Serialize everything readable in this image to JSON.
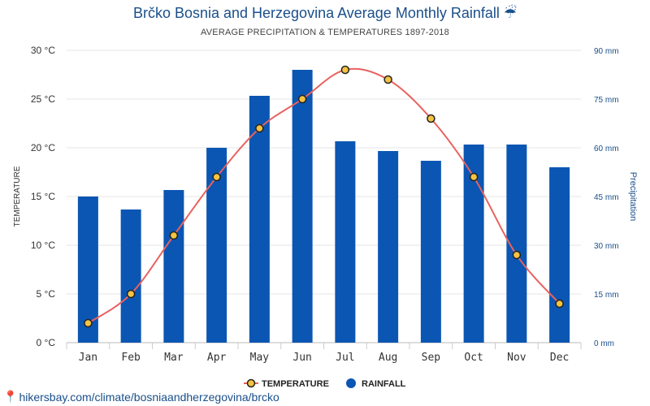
{
  "chart_data": {
    "type": "bar+line",
    "title": "Brčko Bosnia and Herzegovina Average Monthly Rainfall",
    "title_icon": "umbrella-rain-icon",
    "subtitle": "AVERAGE PRECIPITATION & TEMPERATURES 1897-2018",
    "categories": [
      "Jan",
      "Feb",
      "Mar",
      "Apr",
      "May",
      "Jun",
      "Jul",
      "Aug",
      "Sep",
      "Oct",
      "Nov",
      "Dec"
    ],
    "series": [
      {
        "name": "TEMPERATURE",
        "type": "line",
        "axis": "left",
        "color": "#e8625f",
        "marker_fill": "#f5c342",
        "values": [
          2,
          5,
          11,
          17,
          22,
          25,
          28,
          27,
          23,
          17,
          9,
          4
        ]
      },
      {
        "name": "RAINFALL",
        "type": "bar",
        "axis": "right",
        "color": "#0b56b3",
        "values": [
          45,
          41,
          47,
          60,
          76,
          84,
          62,
          59,
          56,
          61,
          61,
          54
        ]
      }
    ],
    "y_left": {
      "label": "TEMPERATURE",
      "range": [
        0,
        30
      ],
      "ticks": [
        "0 °C",
        "5 °C",
        "10 °C",
        "15 °C",
        "20 °C",
        "25 °C",
        "30 °C"
      ]
    },
    "y_right": {
      "label": "Precipitation",
      "range": [
        0,
        90
      ],
      "ticks": [
        "0 mm",
        "15 mm",
        "30 mm",
        "45 mm",
        "60 mm",
        "75 mm",
        "90 mm"
      ]
    },
    "grid": true,
    "legend_position": "bottom"
  },
  "source": {
    "icon": "map-pin-icon",
    "text": "hikersbay.com/climate/bosniaandherzegovina/brcko"
  }
}
